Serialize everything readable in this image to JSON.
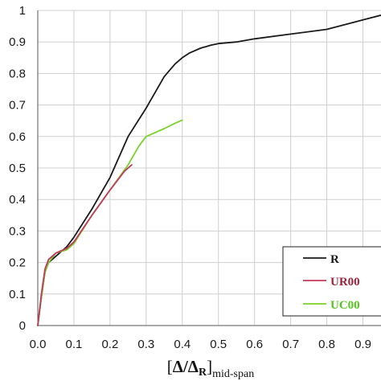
{
  "chart_data": {
    "type": "line",
    "xlabel": {
      "bracket_open": "[",
      "main": "Δ/Δ",
      "sub_r": "R",
      "close": "]",
      "suffix": "mid-span"
    },
    "ylabel": "",
    "xlim": [
      0,
      0.95
    ],
    "ylim": [
      0,
      1
    ],
    "xticks": [
      "0.0",
      "0.1",
      "0.2",
      "0.3",
      "0.4",
      "0.5",
      "0.6",
      "0.7",
      "0.8",
      "0.9"
    ],
    "yticks": [
      "0",
      "0.1",
      "0.2",
      "0.3",
      "0.4",
      "0.5",
      "0.6",
      "0.7",
      "0.8",
      "0.9",
      "1"
    ],
    "grid": true,
    "legend_position": "bottom-right",
    "series": [
      {
        "name": "R",
        "color": "#1a1a1a",
        "legend_color": "#1a1a1a",
        "x": [
          0,
          0.01,
          0.02,
          0.03,
          0.05,
          0.08,
          0.1,
          0.15,
          0.2,
          0.25,
          0.3,
          0.35,
          0.38,
          0.4,
          0.42,
          0.45,
          0.48,
          0.5,
          0.55,
          0.6,
          0.7,
          0.8,
          0.85,
          0.9,
          0.95
        ],
        "y": [
          0,
          0.09,
          0.17,
          0.2,
          0.22,
          0.25,
          0.28,
          0.37,
          0.47,
          0.6,
          0.69,
          0.79,
          0.83,
          0.85,
          0.865,
          0.88,
          0.89,
          0.895,
          0.9,
          0.91,
          0.925,
          0.94,
          0.955,
          0.97,
          0.985
        ]
      },
      {
        "name": "UR00",
        "color": "#c23a5b",
        "legend_color": "#a0243c",
        "x": [
          0,
          0.01,
          0.02,
          0.03,
          0.05,
          0.08,
          0.1,
          0.15,
          0.2,
          0.24,
          0.26
        ],
        "y": [
          0,
          0.1,
          0.18,
          0.21,
          0.23,
          0.245,
          0.265,
          0.35,
          0.43,
          0.49,
          0.51
        ]
      },
      {
        "name": "UC00",
        "color": "#7bd12b",
        "legend_color": "#56c51d",
        "x": [
          0,
          0.01,
          0.02,
          0.03,
          0.05,
          0.08,
          0.1,
          0.15,
          0.2,
          0.25,
          0.28,
          0.3,
          0.32,
          0.35,
          0.38,
          0.4
        ],
        "y": [
          0,
          0.09,
          0.17,
          0.2,
          0.23,
          0.24,
          0.26,
          0.35,
          0.43,
          0.51,
          0.57,
          0.6,
          0.61,
          0.625,
          0.642,
          0.652
        ]
      }
    ]
  }
}
